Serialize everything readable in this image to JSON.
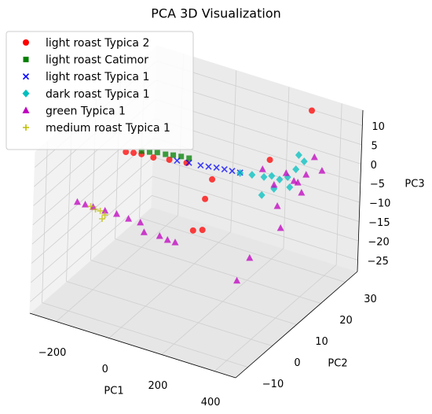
{
  "chart_data": {
    "type": "scatter3d",
    "title": "PCA 3D Visualization",
    "x_label": "PC1",
    "y_label": "PC2",
    "z_label": "PC3",
    "xlim": [
      -300,
      480
    ],
    "ylim": [
      -15,
      35
    ],
    "zlim": [
      -28,
      14
    ],
    "xticks": [
      {
        "value": -200,
        "label": "−200"
      },
      0,
      200,
      400
    ],
    "yticks": [
      {
        "value": -10,
        "label": "−10"
      },
      0,
      10,
      20,
      30
    ],
    "zticks": [
      {
        "value": -25,
        "label": "−25"
      },
      {
        "value": -20,
        "label": "−20"
      },
      {
        "value": -15,
        "label": "−15"
      },
      {
        "value": -10,
        "label": "−10"
      },
      {
        "value": -5,
        "label": "−5"
      },
      0,
      5,
      10
    ],
    "grid": true,
    "legend": "upper left",
    "series": [
      {
        "name": "light roast Typica 2",
        "color": "#ff0000",
        "marker": "circle",
        "x": [
          -182,
          -153,
          -123,
          -78,
          -18,
          47,
          145,
          121,
          80,
          115,
          359,
          333
        ],
        "y": [
          10,
          10,
          10,
          10,
          10,
          10,
          10,
          10,
          10,
          10,
          10,
          30
        ],
        "z": [
          2.7,
          3.1,
          3.4,
          3.5,
          4.2,
          4.8,
          2.6,
          -3.0,
          -12.1,
          -11.2,
          12.3,
          13.5
        ]
      },
      {
        "name": "light roast Catimor",
        "color": "#008000",
        "marker": "square",
        "x": [
          -123,
          -93,
          -64,
          -33,
          -4,
          26,
          56
        ],
        "y": [
          10,
          10,
          10,
          10,
          10,
          10,
          10
        ],
        "z": [
          4.2,
          4.6,
          5.1,
          5.3,
          5.7,
          6.0,
          6.2
        ]
      },
      {
        "name": "light roast Typica 1",
        "color": "#0000ff",
        "marker": "x",
        "x": [
          11,
          56,
          100,
          130,
          160,
          190,
          219,
          249
        ],
        "y": [
          10,
          10,
          10,
          10,
          10,
          10,
          10,
          10
        ],
        "z": [
          4.6,
          5.0,
          5.3,
          5.6,
          6.0,
          6.2,
          6.4,
          6.6
        ]
      },
      {
        "name": "dark roast Typica 1",
        "color": "#00bfbf",
        "marker": "diamond",
        "x": [
          249,
          294,
          339,
          368,
          398,
          428,
          334,
          355,
          325,
          245,
          200,
          304
        ],
        "y": [
          10,
          10,
          10,
          10,
          10,
          10,
          25,
          25,
          25,
          25,
          25,
          25
        ],
        "z": [
          6.5,
          7.0,
          7.4,
          8.3,
          8.0,
          9.3,
          4.7,
          3.5,
          0.8,
          -6.0,
          -8.6,
          -4.3
        ]
      },
      {
        "name": "green Typica 1",
        "color": "#bf00bf",
        "marker": "triangle",
        "x": [
          -269,
          -239,
          -209,
          -164,
          -120,
          -75,
          -30,
          -15,
          44,
          74,
          103,
          200,
          245,
          260,
          275,
          289,
          319,
          349,
          393,
          423,
          364,
          340,
          295,
          334
        ],
        "y": [
          0,
          0,
          0,
          0,
          0,
          0,
          0,
          0,
          0,
          0,
          0,
          25,
          25,
          25,
          25,
          25,
          25,
          25,
          25,
          25,
          25,
          5,
          5,
          25
        ],
        "z": [
          -6.7,
          -6.7,
          -6.7,
          -6.7,
          -6.6,
          -6.9,
          -6.9,
          -9.1,
          -8.8,
          -9.2,
          -9.2,
          -1.9,
          -5.0,
          -10.2,
          -15.6,
          -1.0,
          -2.4,
          -4.8,
          5.4,
          2.5,
          0.2,
          -10.9,
          -17.8,
          -2.5
        ]
      },
      {
        "name": "medium roast Typica 1",
        "color": "#bfbf00",
        "marker": "plus",
        "x": [
          -200,
          -182,
          -164,
          -174,
          -218
        ],
        "y": [
          0,
          0,
          0,
          0,
          0
        ],
        "z": [
          -7.1,
          -7.1,
          -7.8,
          -9.0,
          -6.7
        ]
      }
    ]
  }
}
